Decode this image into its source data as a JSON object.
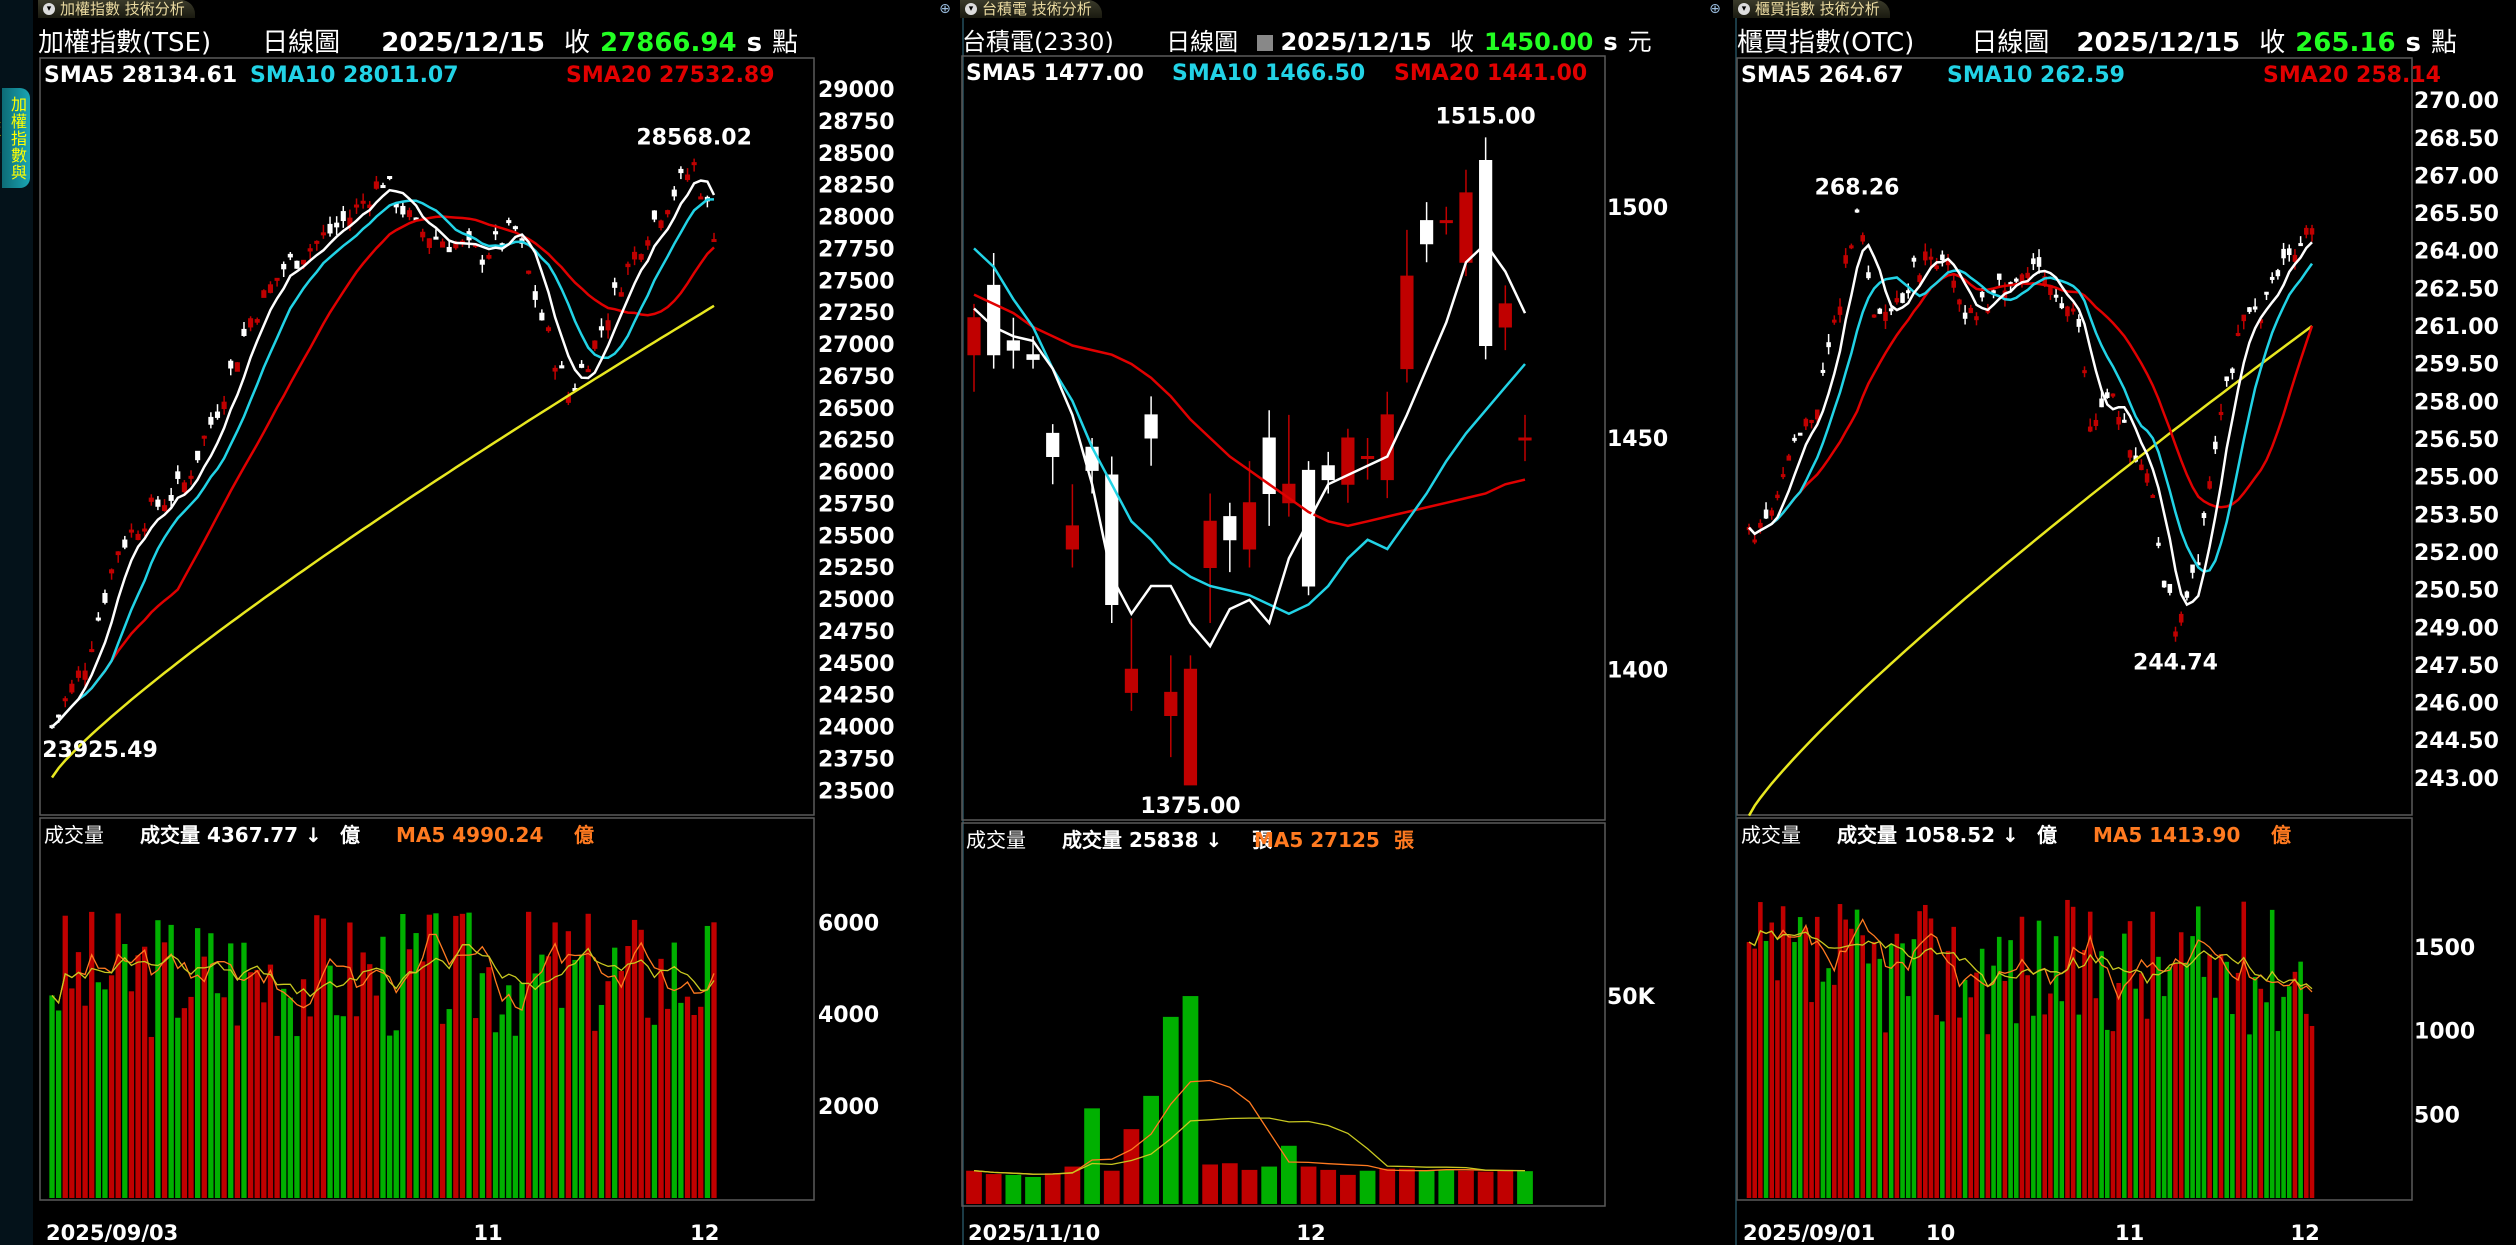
{
  "sidebar": {
    "vertical_tab": "加權指數與櫃買"
  },
  "panels": [
    {
      "tab_label": "加權指數 技術分析",
      "header": {
        "name": "加權指數(TSE)",
        "period": "日線圖",
        "date": "2025/12/15",
        "close_label": "收",
        "close": "27866.94",
        "flag": "s",
        "unit": "點"
      },
      "ma_legend": {
        "sma5": "SMA5 28134.61",
        "sma10": "SMA10 28011.07",
        "sma20": "SMA20 27532.89"
      },
      "vol_legend": {
        "title": "成交量",
        "vol": "成交量 4367.77",
        "vol_unit": "億",
        "ma5": "MA5 4990.24",
        "ma5_unit": "億"
      },
      "x_labels": [
        "2025/09/03",
        "11",
        "12"
      ]
    },
    {
      "tab_label": "台積電 技術分析",
      "header": {
        "name": "台積電(2330)",
        "period": "日線圖",
        "date": "2025/12/15",
        "close_label": "收",
        "close": "1450.00",
        "flag": "s",
        "unit": "元"
      },
      "ma_legend": {
        "sma5": "SMA5 1477.00",
        "sma10": "SMA10 1466.50",
        "sma20": "SMA20 1441.00"
      },
      "vol_legend": {
        "title": "成交量",
        "vol": "成交量 25838",
        "vol_unit": "張",
        "ma5": "MA5 27125",
        "ma5_unit": "張"
      },
      "x_labels": [
        "2025/11/10",
        "12"
      ]
    },
    {
      "tab_label": "櫃買指數 技術分析",
      "header": {
        "name": "櫃買指數(OTC)",
        "period": "日線圖",
        "date": "2025/12/15",
        "close_label": "收",
        "close": "265.16",
        "flag": "s",
        "unit": "點"
      },
      "ma_legend": {
        "sma5": "SMA5 264.67",
        "sma10": "SMA10 262.59",
        "sma20": "SMA20 258.14"
      },
      "vol_legend": {
        "title": "成交量",
        "vol": "成交量 1058.52",
        "vol_unit": "億",
        "ma5": "MA5 1413.90",
        "ma5_unit": "億"
      },
      "x_labels": [
        "2025/09/01",
        "10",
        "11",
        "12"
      ]
    }
  ],
  "colors": {
    "up": "#c00000",
    "down": "#00b000",
    "sma5": "#ffffff",
    "sma10": "#22d3e6",
    "sma20": "#e00000",
    "sma60": "#e8e820",
    "ma5_vol": "#ff7a20",
    "close_green": "#22ff22",
    "arrow_up": "#ff2020",
    "arrow_down": "#22ff22",
    "frame": "#5a5a5a"
  },
  "chart_data": [
    {
      "type": "candlestick",
      "title": "加權指數(TSE)",
      "y_ticks": [
        29000,
        28750,
        28500,
        28250,
        28000,
        27750,
        27500,
        27250,
        27000,
        26750,
        26500,
        26250,
        26000,
        25750,
        25500,
        25250,
        25000,
        24750,
        24500,
        24250,
        24000,
        23750,
        23500
      ],
      "ylim": [
        23400,
        29150
      ],
      "annotations": {
        "high": "28568.02",
        "low": "23925.49"
      },
      "anchors": [
        [
          0,
          24000
        ],
        [
          5,
          24500
        ],
        [
          10,
          25400
        ],
        [
          15,
          25700
        ],
        [
          20,
          25900
        ],
        [
          25,
          26500
        ],
        [
          30,
          27200
        ],
        [
          35,
          27600
        ],
        [
          40,
          27800
        ],
        [
          45,
          28000
        ],
        [
          50,
          28300
        ],
        [
          55,
          27900
        ],
        [
          60,
          27800
        ],
        [
          65,
          27700
        ],
        [
          70,
          27900
        ],
        [
          74,
          27200
        ],
        [
          78,
          26600
        ],
        [
          82,
          27000
        ],
        [
          86,
          27500
        ],
        [
          90,
          27900
        ],
        [
          94,
          28200
        ],
        [
          97,
          28400
        ],
        [
          100,
          27900
        ]
      ],
      "sma60_range": [
        23600,
        27300
      ],
      "n": 101,
      "vol_ticks": [
        6000,
        4000,
        2000
      ],
      "vol_ylim": [
        0,
        7400
      ],
      "vol_level": 4800
    },
    {
      "type": "candlestick",
      "title": "台積電(2330)",
      "y_ticks": [
        1500,
        1450,
        1400
      ],
      "ylim": [
        1370,
        1530
      ],
      "annotations": {
        "high": "1515.00",
        "low": "1375.00"
      },
      "candles": [
        {
          "o": 1468,
          "c": 1476,
          "h": 1479,
          "l": 1460
        },
        {
          "o": 1483,
          "c": 1468,
          "h": 1490,
          "l": 1465
        },
        {
          "o": 1471,
          "c": 1469,
          "h": 1476,
          "l": 1465
        },
        {
          "o": 1468,
          "c": 1467,
          "h": 1472,
          "l": 1465
        },
        {
          "o": 1451,
          "c": 1446,
          "h": 1453,
          "l": 1440
        },
        {
          "o": 1426,
          "c": 1431,
          "h": 1440,
          "l": 1422
        },
        {
          "o": 1448,
          "c": 1443,
          "h": 1450,
          "l": 1438
        },
        {
          "o": 1442,
          "c": 1414,
          "h": 1446,
          "l": 1410
        },
        {
          "o": 1395,
          "c": 1400,
          "h": 1411,
          "l": 1391
        },
        {
          "o": 1455,
          "c": 1450,
          "h": 1459,
          "l": 1444
        },
        {
          "o": 1390,
          "c": 1395,
          "h": 1403,
          "l": 1381
        },
        {
          "o": 1375,
          "c": 1400,
          "h": 1403,
          "l": 1375
        },
        {
          "o": 1422,
          "c": 1432,
          "h": 1438,
          "l": 1410
        },
        {
          "o": 1433,
          "c": 1428,
          "h": 1436,
          "l": 1421
        },
        {
          "o": 1426,
          "c": 1436,
          "h": 1445,
          "l": 1422
        },
        {
          "o": 1450,
          "c": 1438,
          "h": 1456,
          "l": 1431
        },
        {
          "o": 1436,
          "c": 1440,
          "h": 1455,
          "l": 1433
        },
        {
          "o": 1443,
          "c": 1418,
          "h": 1445,
          "l": 1416
        },
        {
          "o": 1444,
          "c": 1441,
          "h": 1447,
          "l": 1438
        },
        {
          "o": 1440,
          "c": 1450,
          "h": 1452,
          "l": 1436
        },
        {
          "o": 1446,
          "c": 1446,
          "h": 1450,
          "l": 1441
        },
        {
          "o": 1441,
          "c": 1455,
          "h": 1460,
          "l": 1437
        },
        {
          "o": 1465,
          "c": 1485,
          "h": 1495,
          "l": 1462
        },
        {
          "o": 1497,
          "c": 1492,
          "h": 1501,
          "l": 1488
        },
        {
          "o": 1497,
          "c": 1497,
          "h": 1500,
          "l": 1494
        },
        {
          "o": 1488,
          "c": 1503,
          "h": 1508,
          "l": 1485
        },
        {
          "o": 1510,
          "c": 1470,
          "h": 1515,
          "l": 1467
        },
        {
          "o": 1474,
          "c": 1479,
          "h": 1483,
          "l": 1469
        },
        {
          "o": 1450,
          "c": 1450,
          "h": 1455,
          "l": 1445
        }
      ],
      "sma5": [
        1478,
        1474,
        1472,
        1471,
        1465,
        1455,
        1440,
        1420,
        1412,
        1418,
        1418,
        1410,
        1405,
        1413,
        1415,
        1410,
        1424,
        1432,
        1440,
        1442,
        1444,
        1446,
        1455,
        1465,
        1475,
        1488,
        1492,
        1486,
        1477
      ],
      "sma10": [
        1491,
        1487,
        1480,
        1474,
        1465,
        1458,
        1448,
        1440,
        1432,
        1428,
        1423,
        1420,
        1418,
        1417,
        1416,
        1414,
        1412,
        1414,
        1418,
        1424,
        1428,
        1426,
        1432,
        1438,
        1445,
        1451,
        1456,
        1461,
        1466
      ],
      "sma20": [
        1481,
        1479,
        1477,
        1474,
        1472,
        1470,
        1469,
        1468,
        1466,
        1463,
        1459,
        1454,
        1450,
        1446,
        1443,
        1440,
        1437,
        1434,
        1432,
        1431,
        1432,
        1433,
        1434,
        1435,
        1436,
        1437,
        1438,
        1440,
        1441
      ],
      "volume": [
        8000,
        7200,
        7000,
        6500,
        7400,
        9000,
        23000,
        8000,
        18000,
        26000,
        45000,
        50000,
        9500,
        9800,
        8200,
        9000,
        14000,
        9000,
        8200,
        7000,
        8000,
        8500,
        8500,
        8000,
        8300,
        8000,
        7800,
        8200,
        7900
      ],
      "vol_up": [
        1,
        1,
        0,
        0,
        1,
        1,
        0,
        1,
        1,
        0,
        0,
        0,
        1,
        1,
        1,
        0,
        0,
        1,
        1,
        1,
        0,
        1,
        1,
        0,
        0,
        1,
        1,
        1,
        0
      ],
      "vol_ticks": [
        50000
      ],
      "vol_ylim": [
        0,
        82000
      ]
    },
    {
      "type": "candlestick",
      "title": "櫃買指數(OTC)",
      "y_ticks": [
        270.0,
        268.5,
        267.0,
        265.5,
        264.0,
        262.5,
        261.0,
        259.5,
        258.0,
        256.5,
        255.0,
        253.5,
        252.0,
        250.5,
        249.0,
        247.5,
        246.0,
        244.5,
        243.0
      ],
      "ylim": [
        242.0,
        271.2
      ],
      "annotations": {
        "high": "268.26",
        "low": "244.74"
      },
      "anchors": [
        [
          0,
          252.5
        ],
        [
          4,
          254
        ],
        [
          8,
          256
        ],
        [
          12,
          258
        ],
        [
          16,
          262
        ],
        [
          19,
          266
        ],
        [
          22,
          261
        ],
        [
          26,
          262
        ],
        [
          30,
          263.5
        ],
        [
          34,
          264
        ],
        [
          38,
          261
        ],
        [
          42,
          262
        ],
        [
          46,
          263
        ],
        [
          50,
          263
        ],
        [
          54,
          262.5
        ],
        [
          58,
          261
        ],
        [
          60,
          257
        ],
        [
          64,
          258
        ],
        [
          68,
          256
        ],
        [
          71,
          254
        ],
        [
          73,
          251
        ],
        [
          75,
          249
        ],
        [
          79,
          252
        ],
        [
          83,
          258
        ],
        [
          87,
          261
        ],
        [
          91,
          262
        ],
        [
          95,
          264
        ],
        [
          99,
          265
        ]
      ],
      "sma60_range": [
        241.5,
        261.0
      ],
      "n": 100,
      "vol_ticks": [
        1500,
        1000,
        500
      ],
      "vol_ylim": [
        0,
        2030
      ],
      "vol_level": 1350
    }
  ]
}
